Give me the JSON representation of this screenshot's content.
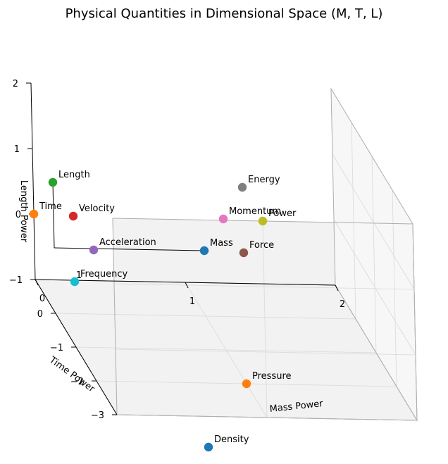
{
  "chart_data": {
    "type": "scatter3d",
    "title": "Physical Quantities in Dimensional Space (M, T, L)",
    "xlabel": "Mass Power",
    "ylabel": "Time Power",
    "zlabel": "Length Power",
    "xlim": [
      0,
      2
    ],
    "ylim": [
      -3,
      1
    ],
    "zlim": [
      -1,
      2
    ],
    "xticks": [
      "0",
      "1",
      "2"
    ],
    "yticks": [
      "1",
      "0",
      "−1",
      "−2",
      "−3"
    ],
    "zticks": [
      "2",
      "1",
      "0",
      "−1"
    ],
    "grid": true,
    "points": [
      {
        "name": "Mass",
        "x": 1,
        "y": 0,
        "z": 0,
        "color": "#1f77b4"
      },
      {
        "name": "Time",
        "x": 0,
        "y": 1,
        "z": 0,
        "color": "#ff7f0e"
      },
      {
        "name": "Length",
        "x": 0,
        "y": 0,
        "z": 1,
        "color": "#2ca02c"
      },
      {
        "name": "Velocity",
        "x": 0,
        "y": -1,
        "z": 1,
        "color": "#d62728"
      },
      {
        "name": "Acceleration",
        "x": 0,
        "y": -2,
        "z": 1,
        "color": "#9467bd"
      },
      {
        "name": "Force",
        "x": 1,
        "y": -2,
        "z": 1,
        "color": "#8c564b"
      },
      {
        "name": "Momentum",
        "x": 1,
        "y": -1,
        "z": 1,
        "color": "#e377c2"
      },
      {
        "name": "Energy",
        "x": 1,
        "y": -2,
        "z": 2,
        "color": "#7f7f7f"
      },
      {
        "name": "Power",
        "x": 1,
        "y": -3,
        "z": 2,
        "color": "#bcbd22"
      },
      {
        "name": "Frequency",
        "x": 0,
        "y": -1,
        "z": 0,
        "color": "#17becf"
      },
      {
        "name": "Pressure",
        "x": 1,
        "y": -2,
        "z": -1,
        "color": "#ff7f0e"
      },
      {
        "name": "Density",
        "x": 1,
        "y": 0,
        "z": -3,
        "color": "#1f77b4"
      }
    ],
    "annotation": {
      "text": "1"
    }
  }
}
